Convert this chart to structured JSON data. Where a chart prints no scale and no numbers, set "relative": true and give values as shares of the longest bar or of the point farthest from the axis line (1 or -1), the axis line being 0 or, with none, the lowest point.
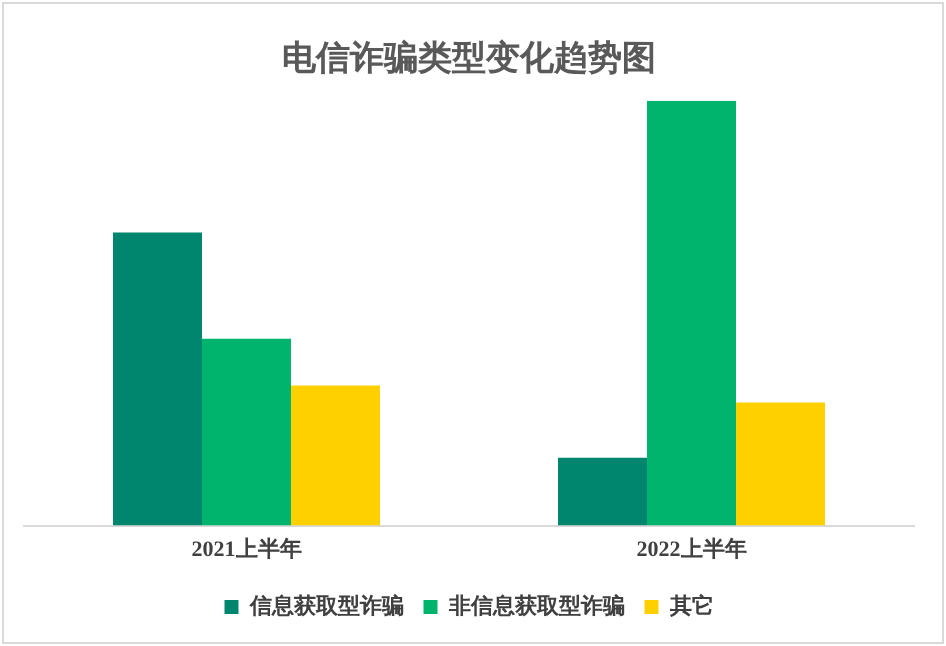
{
  "chart_data": {
    "type": "bar",
    "title": "电信诈骗类型变化趋势图",
    "relative": true,
    "categories": [
      "2021上半年",
      "2022上半年"
    ],
    "series": [
      {
        "name": "信息获取型诈骗",
        "color": "#00856f",
        "values": [
          0.69,
          0.16
        ]
      },
      {
        "name": "非信息获取型诈骗",
        "color": "#00b46e",
        "values": [
          0.44,
          1
        ]
      },
      {
        "name": "其它",
        "color": "#ffd000",
        "values": [
          0.33,
          0.29
        ]
      }
    ],
    "legend": "bottom"
  }
}
